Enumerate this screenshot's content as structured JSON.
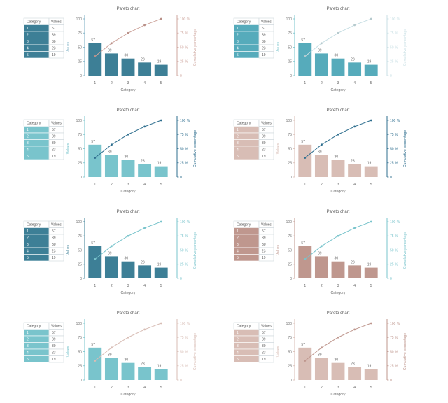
{
  "table_headers": {
    "category": "Category",
    "values": "Values"
  },
  "chart_data": [
    {
      "type": "bar",
      "title": "Pareto chart",
      "xlabel": "Category",
      "ylabel": "Values",
      "y2label": "Cumulative percentage",
      "categories": [
        "1",
        "2",
        "3",
        "4",
        "5"
      ],
      "values": [
        57,
        39,
        30,
        23,
        19
      ],
      "cumulative_percent": [
        34,
        57,
        75,
        89,
        100
      ],
      "ylim": [
        0,
        100
      ],
      "yticks": [
        0,
        25,
        50,
        75,
        100
      ],
      "y2ticks": [
        "0",
        "25 %",
        "50 %",
        "75 %",
        "100 %"
      ],
      "colors": {
        "bar": "#3d7f96",
        "table": "#3d7f96",
        "line": "#cfa79f",
        "line_point": "#b88f87",
        "axis_y": "#7aaec3",
        "axis_y2": "#cfa79f"
      }
    },
    {
      "type": "bar",
      "title": "Pareto chart",
      "xlabel": "Category",
      "ylabel": "Values",
      "y2label": "Cumulative percentage",
      "categories": [
        "1",
        "2",
        "3",
        "4",
        "5"
      ],
      "values": [
        57,
        39,
        30,
        23,
        19
      ],
      "cumulative_percent": [
        34,
        57,
        75,
        89,
        100
      ],
      "ylim": [
        0,
        100
      ],
      "yticks": [
        0,
        25,
        50,
        75,
        100
      ],
      "y2ticks": [
        "0",
        "25 %",
        "50 %",
        "75 %",
        "100 %"
      ],
      "colors": {
        "bar": "#56abbb",
        "table": "#56abbb",
        "line": "#c8dfe4",
        "line_point": "#b5c9cd",
        "axis_y": "#79c4cc",
        "axis_y2": "#c8dfe4"
      }
    },
    {
      "type": "bar",
      "title": "Pareto chart",
      "xlabel": "Category",
      "ylabel": "Values",
      "y2label": "Cumulative percentage",
      "categories": [
        "1",
        "2",
        "3",
        "4",
        "5"
      ],
      "values": [
        57,
        39,
        30,
        23,
        19
      ],
      "cumulative_percent": [
        34,
        57,
        75,
        89,
        100
      ],
      "ylim": [
        0,
        100
      ],
      "yticks": [
        0,
        25,
        50,
        75,
        100
      ],
      "y2ticks": [
        "0",
        "25 %",
        "50 %",
        "75 %",
        "100 %"
      ],
      "colors": {
        "bar": "#79c4cc",
        "table": "#79c4cc",
        "line": "#2f6f8f",
        "line_point": "#2f6f8f",
        "axis_y": "#79c4cc",
        "axis_y2": "#2f6f8f"
      }
    },
    {
      "type": "bar",
      "title": "Pareto chart",
      "xlabel": "Category",
      "ylabel": "Values",
      "y2label": "Cumulative percentage",
      "categories": [
        "1",
        "2",
        "3",
        "4",
        "5"
      ],
      "values": [
        57,
        39,
        30,
        23,
        19
      ],
      "cumulative_percent": [
        34,
        57,
        75,
        89,
        100
      ],
      "ylim": [
        0,
        100
      ],
      "yticks": [
        0,
        25,
        50,
        75,
        100
      ],
      "y2ticks": [
        "0",
        "25 %",
        "50 %",
        "75 %",
        "100 %"
      ],
      "colors": {
        "bar": "#d8bdb5",
        "table": "#d8bdb5",
        "line": "#2f6f8f",
        "line_point": "#2f6f8f",
        "axis_y": "#d8bdb5",
        "axis_y2": "#2f6f8f"
      }
    },
    {
      "type": "bar",
      "title": "Pareto chart",
      "xlabel": "Category",
      "ylabel": "Values",
      "y2label": "Cumulative percentage",
      "categories": [
        "1",
        "2",
        "3",
        "4",
        "5"
      ],
      "values": [
        57,
        39,
        30,
        23,
        19
      ],
      "cumulative_percent": [
        34,
        57,
        75,
        89,
        100
      ],
      "ylim": [
        0,
        100
      ],
      "yticks": [
        0,
        25,
        50,
        75,
        100
      ],
      "y2ticks": [
        "0",
        "25 %",
        "50 %",
        "75 %",
        "100 %"
      ],
      "colors": {
        "bar": "#3d7f96",
        "table": "#3d7f96",
        "line": "#79c4cc",
        "line_point": "#79c4cc",
        "axis_y": "#3d7f96",
        "axis_y2": "#79c4cc"
      }
    },
    {
      "type": "bar",
      "title": "Pareto chart",
      "xlabel": "Category",
      "ylabel": "Values",
      "y2label": "Cumulative percentage",
      "categories": [
        "1",
        "2",
        "3",
        "4",
        "5"
      ],
      "values": [
        57,
        39,
        30,
        23,
        19
      ],
      "cumulative_percent": [
        34,
        57,
        75,
        89,
        100
      ],
      "ylim": [
        0,
        100
      ],
      "yticks": [
        0,
        25,
        50,
        75,
        100
      ],
      "y2ticks": [
        "0",
        "25 %",
        "50 %",
        "75 %",
        "100 %"
      ],
      "colors": {
        "bar": "#bf978e",
        "table": "#bf978e",
        "line": "#79c4cc",
        "line_point": "#79c4cc",
        "axis_y": "#bf978e",
        "axis_y2": "#79c4cc"
      }
    },
    {
      "type": "bar",
      "title": "Pareto chart",
      "xlabel": "Category",
      "ylabel": "Values",
      "y2label": "Cumulative percentage",
      "categories": [
        "1",
        "2",
        "3",
        "4",
        "5"
      ],
      "values": [
        57,
        39,
        30,
        23,
        19
      ],
      "cumulative_percent": [
        34,
        57,
        75,
        89,
        100
      ],
      "ylim": [
        0,
        100
      ],
      "yticks": [
        0,
        25,
        50,
        75,
        100
      ],
      "y2ticks": [
        "0",
        "25 %",
        "50 %",
        "75 %",
        "100 %"
      ],
      "colors": {
        "bar": "#79c4cc",
        "table": "#79c4cc",
        "line": "#d8bdb5",
        "line_point": "#d8bdb5",
        "axis_y": "#79c4cc",
        "axis_y2": "#d8bdb5"
      }
    },
    {
      "type": "bar",
      "title": "Pareto chart",
      "xlabel": "Category",
      "ylabel": "Values",
      "y2label": "Cumulative percentage",
      "categories": [
        "1",
        "2",
        "3",
        "4",
        "5"
      ],
      "values": [
        57,
        39,
        30,
        23,
        19
      ],
      "cumulative_percent": [
        34,
        57,
        75,
        89,
        100
      ],
      "ylim": [
        0,
        100
      ],
      "yticks": [
        0,
        25,
        50,
        75,
        100
      ],
      "y2ticks": [
        "0",
        "25 %",
        "50 %",
        "75 %",
        "100 %"
      ],
      "colors": {
        "bar": "#d8bdb5",
        "table": "#d8bdb5",
        "line": "#bf978e",
        "line_point": "#bf978e",
        "axis_y": "#d8bdb5",
        "axis_y2": "#bf978e"
      }
    }
  ]
}
